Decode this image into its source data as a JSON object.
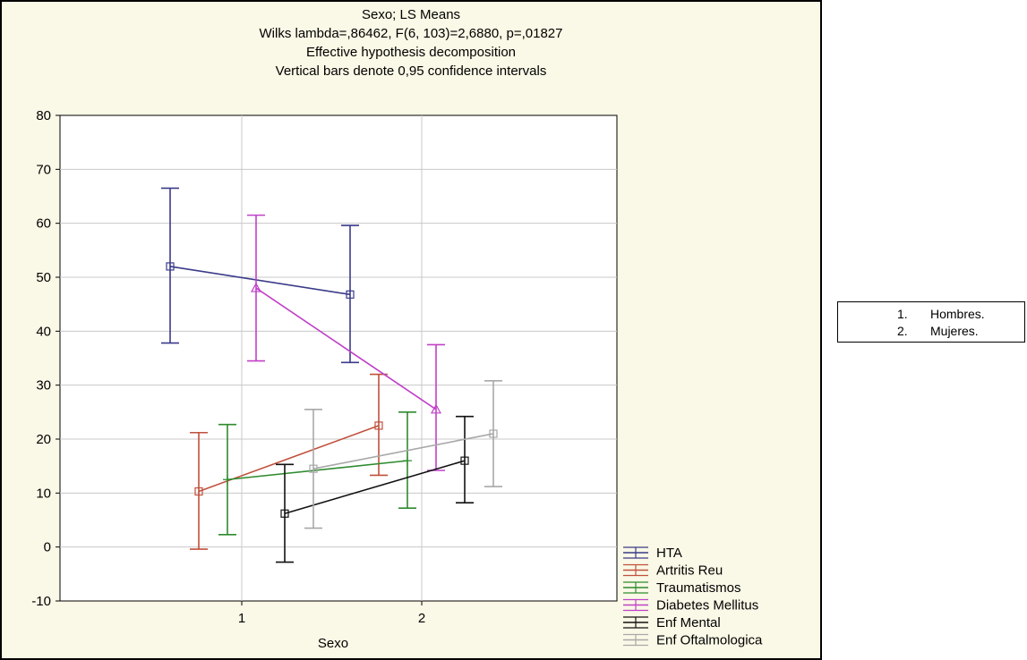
{
  "chart_data": {
    "type": "line",
    "title_lines": [
      "Sexo; LS Means",
      "Wilks lambda=,86462, F(6, 103)=2,6880, p=,01827",
      "Effective hypothesis decomposition",
      "Vertical bars denote 0,95 confidence intervals"
    ],
    "xlabel": "Sexo",
    "ylabel": "",
    "categories": [
      "1",
      "2"
    ],
    "ylim": [
      -10,
      80
    ],
    "yticks": [
      "-10",
      "0",
      "10",
      "20",
      "30",
      "40",
      "50",
      "60",
      "70",
      "80"
    ],
    "grid": true,
    "legend_position": "bottom-right",
    "series": [
      {
        "name": "HTA",
        "color": "#3a3a8a",
        "marker": "square",
        "values": [
          52,
          46.8
        ],
        "lower": [
          37.8,
          34.2
        ],
        "upper": [
          66.5,
          59.6
        ]
      },
      {
        "name": "Artritis Reu",
        "color": "#c0503c",
        "marker": "square",
        "values": [
          10.3,
          22.5
        ],
        "lower": [
          -0.4,
          13.3
        ],
        "upper": [
          21.2,
          32.0
        ]
      },
      {
        "name": "Traumatismos",
        "color": "#2e8b2e",
        "marker": "plus",
        "values": [
          12.5,
          16.0
        ],
        "lower": [
          2.3,
          7.2
        ],
        "upper": [
          22.7,
          25.0
        ]
      },
      {
        "name": "Diabetes Mellitus",
        "color": "#c040c8",
        "marker": "triangle",
        "values": [
          48.0,
          25.5
        ],
        "lower": [
          34.5,
          14.2
        ],
        "upper": [
          61.5,
          37.5
        ]
      },
      {
        "name": "Enf Mental",
        "color": "#111111",
        "marker": "square",
        "values": [
          6.2,
          16.0
        ],
        "lower": [
          -2.8,
          8.2
        ],
        "upper": [
          15.3,
          24.2
        ]
      },
      {
        "name": "Enf Oftalmologica",
        "color": "#a8a8a8",
        "marker": "square",
        "values": [
          14.5,
          21.0
        ],
        "lower": [
          3.5,
          11.2
        ],
        "upper": [
          25.5,
          30.8
        ]
      }
    ]
  },
  "sexo_legend": {
    "items": [
      {
        "number": "1.",
        "label": "Hombres."
      },
      {
        "number": "2.",
        "label": "Mujeres."
      }
    ]
  },
  "colors": {
    "background": "#faf8e6",
    "frame": "#000000",
    "gridline": "#c8c8c8"
  }
}
